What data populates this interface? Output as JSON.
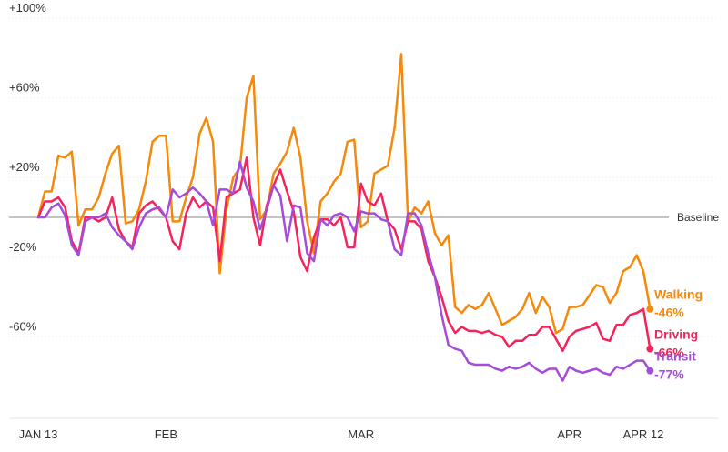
{
  "chart_data": {
    "type": "line",
    "baseline_label": "Baseline",
    "ylim": [
      -100,
      100
    ],
    "yticks": [
      "+100%",
      "+60%",
      "+20%",
      "-20%",
      "-60%"
    ],
    "ytick_values": [
      100,
      60,
      20,
      -20,
      -60
    ],
    "x_range_days": [
      0,
      90
    ],
    "xticks": [
      {
        "label": "JAN 13",
        "day": 0
      },
      {
        "label": "FEB",
        "day": 19
      },
      {
        "label": "MAR",
        "day": 48
      },
      {
        "label": "APR",
        "day": 79
      },
      {
        "label": "APR 12",
        "day": 90
      }
    ],
    "grid": true,
    "legend": "end-labels",
    "series": [
      {
        "name": "Walking",
        "change": "-46%",
        "color": "#F5890A",
        "values": [
          0,
          13,
          13,
          31,
          30,
          33,
          -4,
          4,
          4,
          10,
          22,
          32,
          36,
          -3,
          -2,
          4,
          18,
          38,
          41,
          41,
          -2,
          -2,
          10,
          20,
          42,
          50,
          38,
          -28,
          4,
          20,
          25,
          60,
          71,
          -1,
          4,
          22,
          27,
          33,
          45,
          30,
          -2,
          -18,
          8,
          12,
          18,
          22,
          38,
          39,
          -5,
          -2,
          22,
          24,
          26,
          45,
          82,
          -2,
          5,
          2,
          8,
          -8,
          -14,
          -9,
          -45,
          -48,
          -44,
          -46,
          -44,
          -38,
          -46,
          -54,
          -52,
          -50,
          -46,
          -38,
          -48,
          -40,
          -45,
          -58,
          -56,
          -45,
          -45,
          -44,
          -39,
          -34,
          -35,
          -43,
          -38,
          -27,
          -25,
          -19,
          -27,
          -46
        ]
      },
      {
        "name": "Driving",
        "change": "-66%",
        "color": "#F5235A",
        "values": [
          0,
          8,
          8,
          10,
          5,
          -12,
          -18,
          0,
          0,
          -2,
          0,
          10,
          -6,
          -12,
          -15,
          2,
          6,
          8,
          4,
          0,
          -12,
          -16,
          2,
          10,
          5,
          8,
          5,
          -22,
          10,
          12,
          14,
          30,
          0,
          -14,
          6,
          16,
          24,
          13,
          3,
          -20,
          -27,
          -10,
          -1,
          -1,
          -4,
          0,
          -15,
          -15,
          17,
          8,
          6,
          12,
          -2,
          -6,
          -16,
          -2,
          -2,
          -6,
          -22,
          -30,
          -40,
          -52,
          -58,
          -55,
          -57,
          -57,
          -58,
          -57,
          -59,
          -60,
          -65,
          -62,
          -62,
          -59,
          -59,
          -55,
          -55,
          -61,
          -67,
          -60,
          -57,
          -56,
          -55,
          -53,
          -61,
          -62,
          -54,
          -54,
          -49,
          -48,
          -46,
          -66
        ]
      },
      {
        "name": "Transit",
        "change": "-77%",
        "color": "#A54CD9",
        "values": [
          0,
          0,
          5,
          7,
          1,
          -14,
          -19,
          -2,
          0,
          0,
          2,
          -5,
          -9,
          -12,
          -16,
          -5,
          2,
          4,
          5,
          0,
          14,
          10,
          12,
          15,
          12,
          8,
          -4,
          14,
          14,
          12,
          28,
          15,
          8,
          -6,
          4,
          16,
          11,
          -12,
          6,
          5,
          -18,
          -22,
          -1,
          -4,
          1,
          2,
          0,
          -7,
          3,
          2,
          2,
          -1,
          -2,
          -16,
          -19,
          2,
          2,
          -4,
          -18,
          -30,
          -49,
          -64,
          -66,
          -67,
          -73,
          -74,
          -74,
          -74,
          -76,
          -77,
          -75,
          -76,
          -75,
          -73,
          -76,
          -78,
          -76,
          -76,
          -82,
          -75,
          -77,
          -78,
          -77,
          -76,
          -78,
          -79,
          -75,
          -76,
          -74,
          -72,
          -72,
          -77
        ]
      }
    ]
  }
}
